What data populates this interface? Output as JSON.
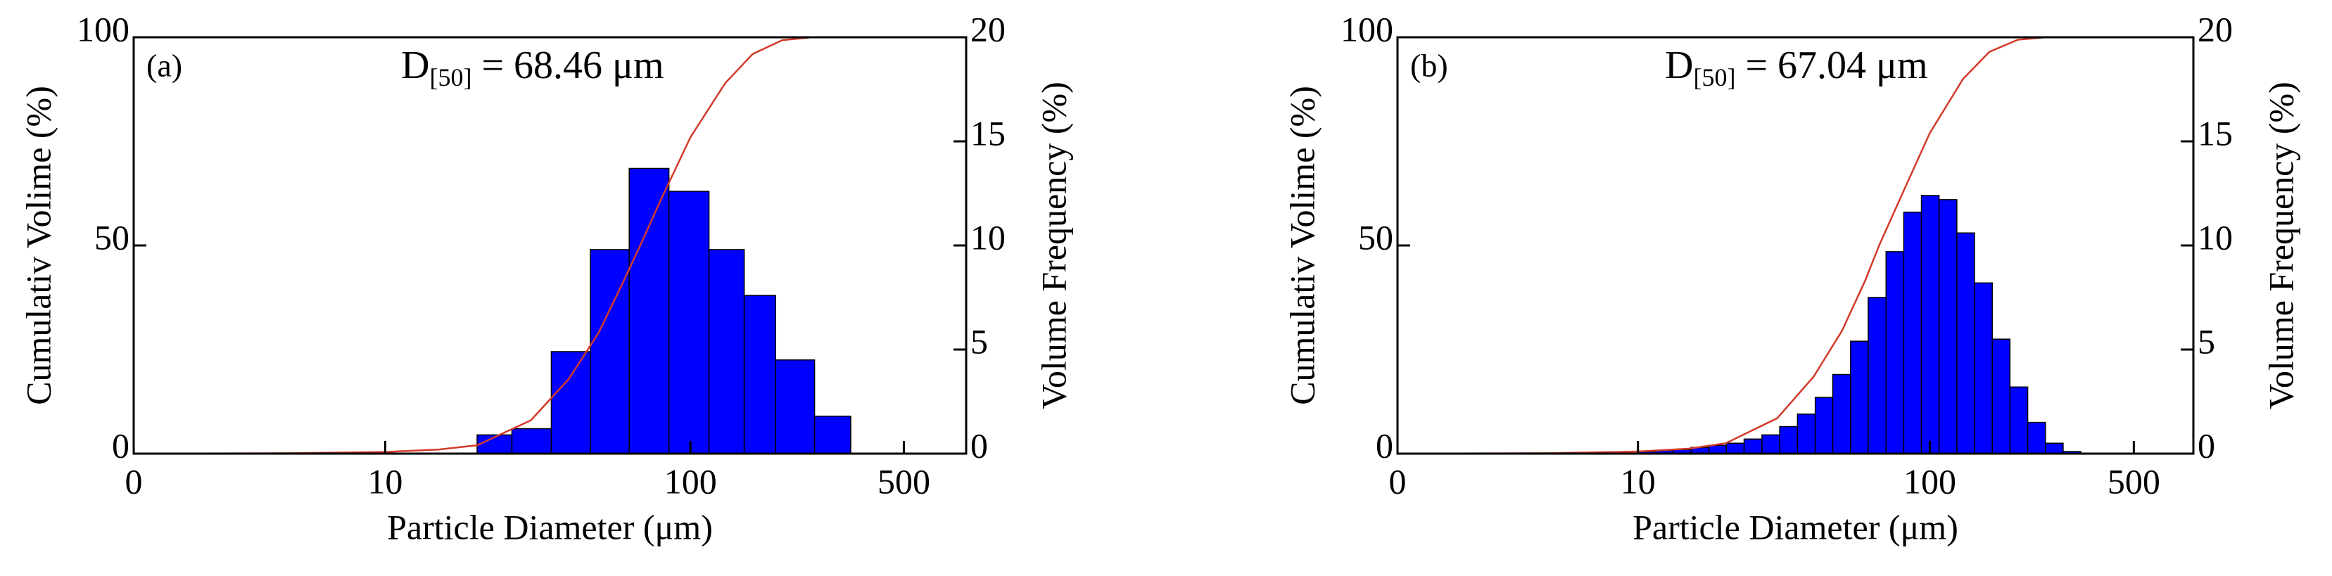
{
  "chart_data": [
    {
      "type": "histogram",
      "panel_label": "(a)",
      "annotation": {
        "main": "D",
        "sub": "[50]",
        "rest": "= 68.46 μm"
      },
      "xlabel": "Particle Diameter (μm)",
      "ylabel": "Cumulativ Volime (%)",
      "y2label": "Volume Frequency (%)",
      "xscale": "log",
      "xlim": [
        1.5,
        800
      ],
      "xstart_label": "0",
      "xticks": [
        10,
        100,
        500
      ],
      "ylim": [
        0,
        100
      ],
      "yticks": [
        0,
        50,
        100
      ],
      "y2lim": [
        0,
        20
      ],
      "y2ticks": [
        0,
        5,
        10,
        15,
        20
      ],
      "bins": [
        20,
        26,
        35,
        47,
        63,
        85,
        115,
        150,
        190,
        255,
        335
      ],
      "values": [
        0.9,
        1.2,
        4.9,
        9.8,
        13.7,
        12.6,
        9.8,
        7.6,
        4.5,
        1.8
      ],
      "axis": "y2",
      "color": "#0000ff",
      "line": {
        "color": "#d23a2a",
        "x": [
          1.5,
          5,
          10,
          15,
          20,
          30,
          40,
          50,
          60,
          68.46,
          80,
          100,
          130,
          160,
          200,
          250
        ],
        "values": [
          0,
          0.1,
          0.4,
          1,
          2,
          8,
          18,
          29,
          41,
          50,
          61,
          76,
          89,
          96,
          99.3,
          100
        ]
      }
    },
    {
      "type": "histogram",
      "panel_label": "(b)",
      "annotation": {
        "main": "D",
        "sub": "[50]",
        "rest": "= 67.04 μm"
      },
      "xlabel": "Particle Diameter (μm)",
      "ylabel": "Cumulativ Volime (%)",
      "y2label": "Volume Frequency (%)",
      "xscale": "log",
      "xlim": [
        1.5,
        800
      ],
      "xstart_label": "0",
      "xticks": [
        10,
        100,
        500
      ],
      "ylim": [
        0,
        100
      ],
      "yticks": [
        0,
        50,
        100
      ],
      "y2lim": [
        0,
        20
      ],
      "y2ticks": [
        0,
        5,
        10,
        15,
        20
      ],
      "bins": [
        10,
        11.5,
        13.2,
        15.2,
        17.5,
        20.1,
        23.1,
        26.6,
        30.6,
        35.2,
        40.5,
        46.5,
        53.5,
        61.5,
        70.8,
        81.4,
        93.6,
        107.6,
        123.8,
        142.3,
        163.7,
        188.2,
        216.5,
        249,
        286.3,
        329.2
      ],
      "values": [
        0.1,
        0.15,
        0.2,
        0.3,
        0.4,
        0.5,
        0.7,
        0.9,
        1.3,
        1.9,
        2.7,
        3.8,
        5.4,
        7.5,
        9.7,
        11.6,
        12.4,
        12.2,
        10.6,
        8.2,
        5.5,
        3.2,
        1.5,
        0.5,
        0.1
      ],
      "axis": "y2",
      "color": "#0000ff",
      "line": {
        "color": "#d23a2a",
        "x": [
          1.5,
          5,
          10,
          15,
          20,
          30,
          40,
          50,
          60,
          67.04,
          80,
          100,
          130,
          160,
          200,
          250
        ],
        "values": [
          0,
          0.1,
          0.5,
          1.2,
          2.5,
          8.5,
          18.5,
          29.5,
          41.5,
          50,
          62,
          77,
          90,
          96.5,
          99.4,
          100
        ]
      }
    }
  ]
}
